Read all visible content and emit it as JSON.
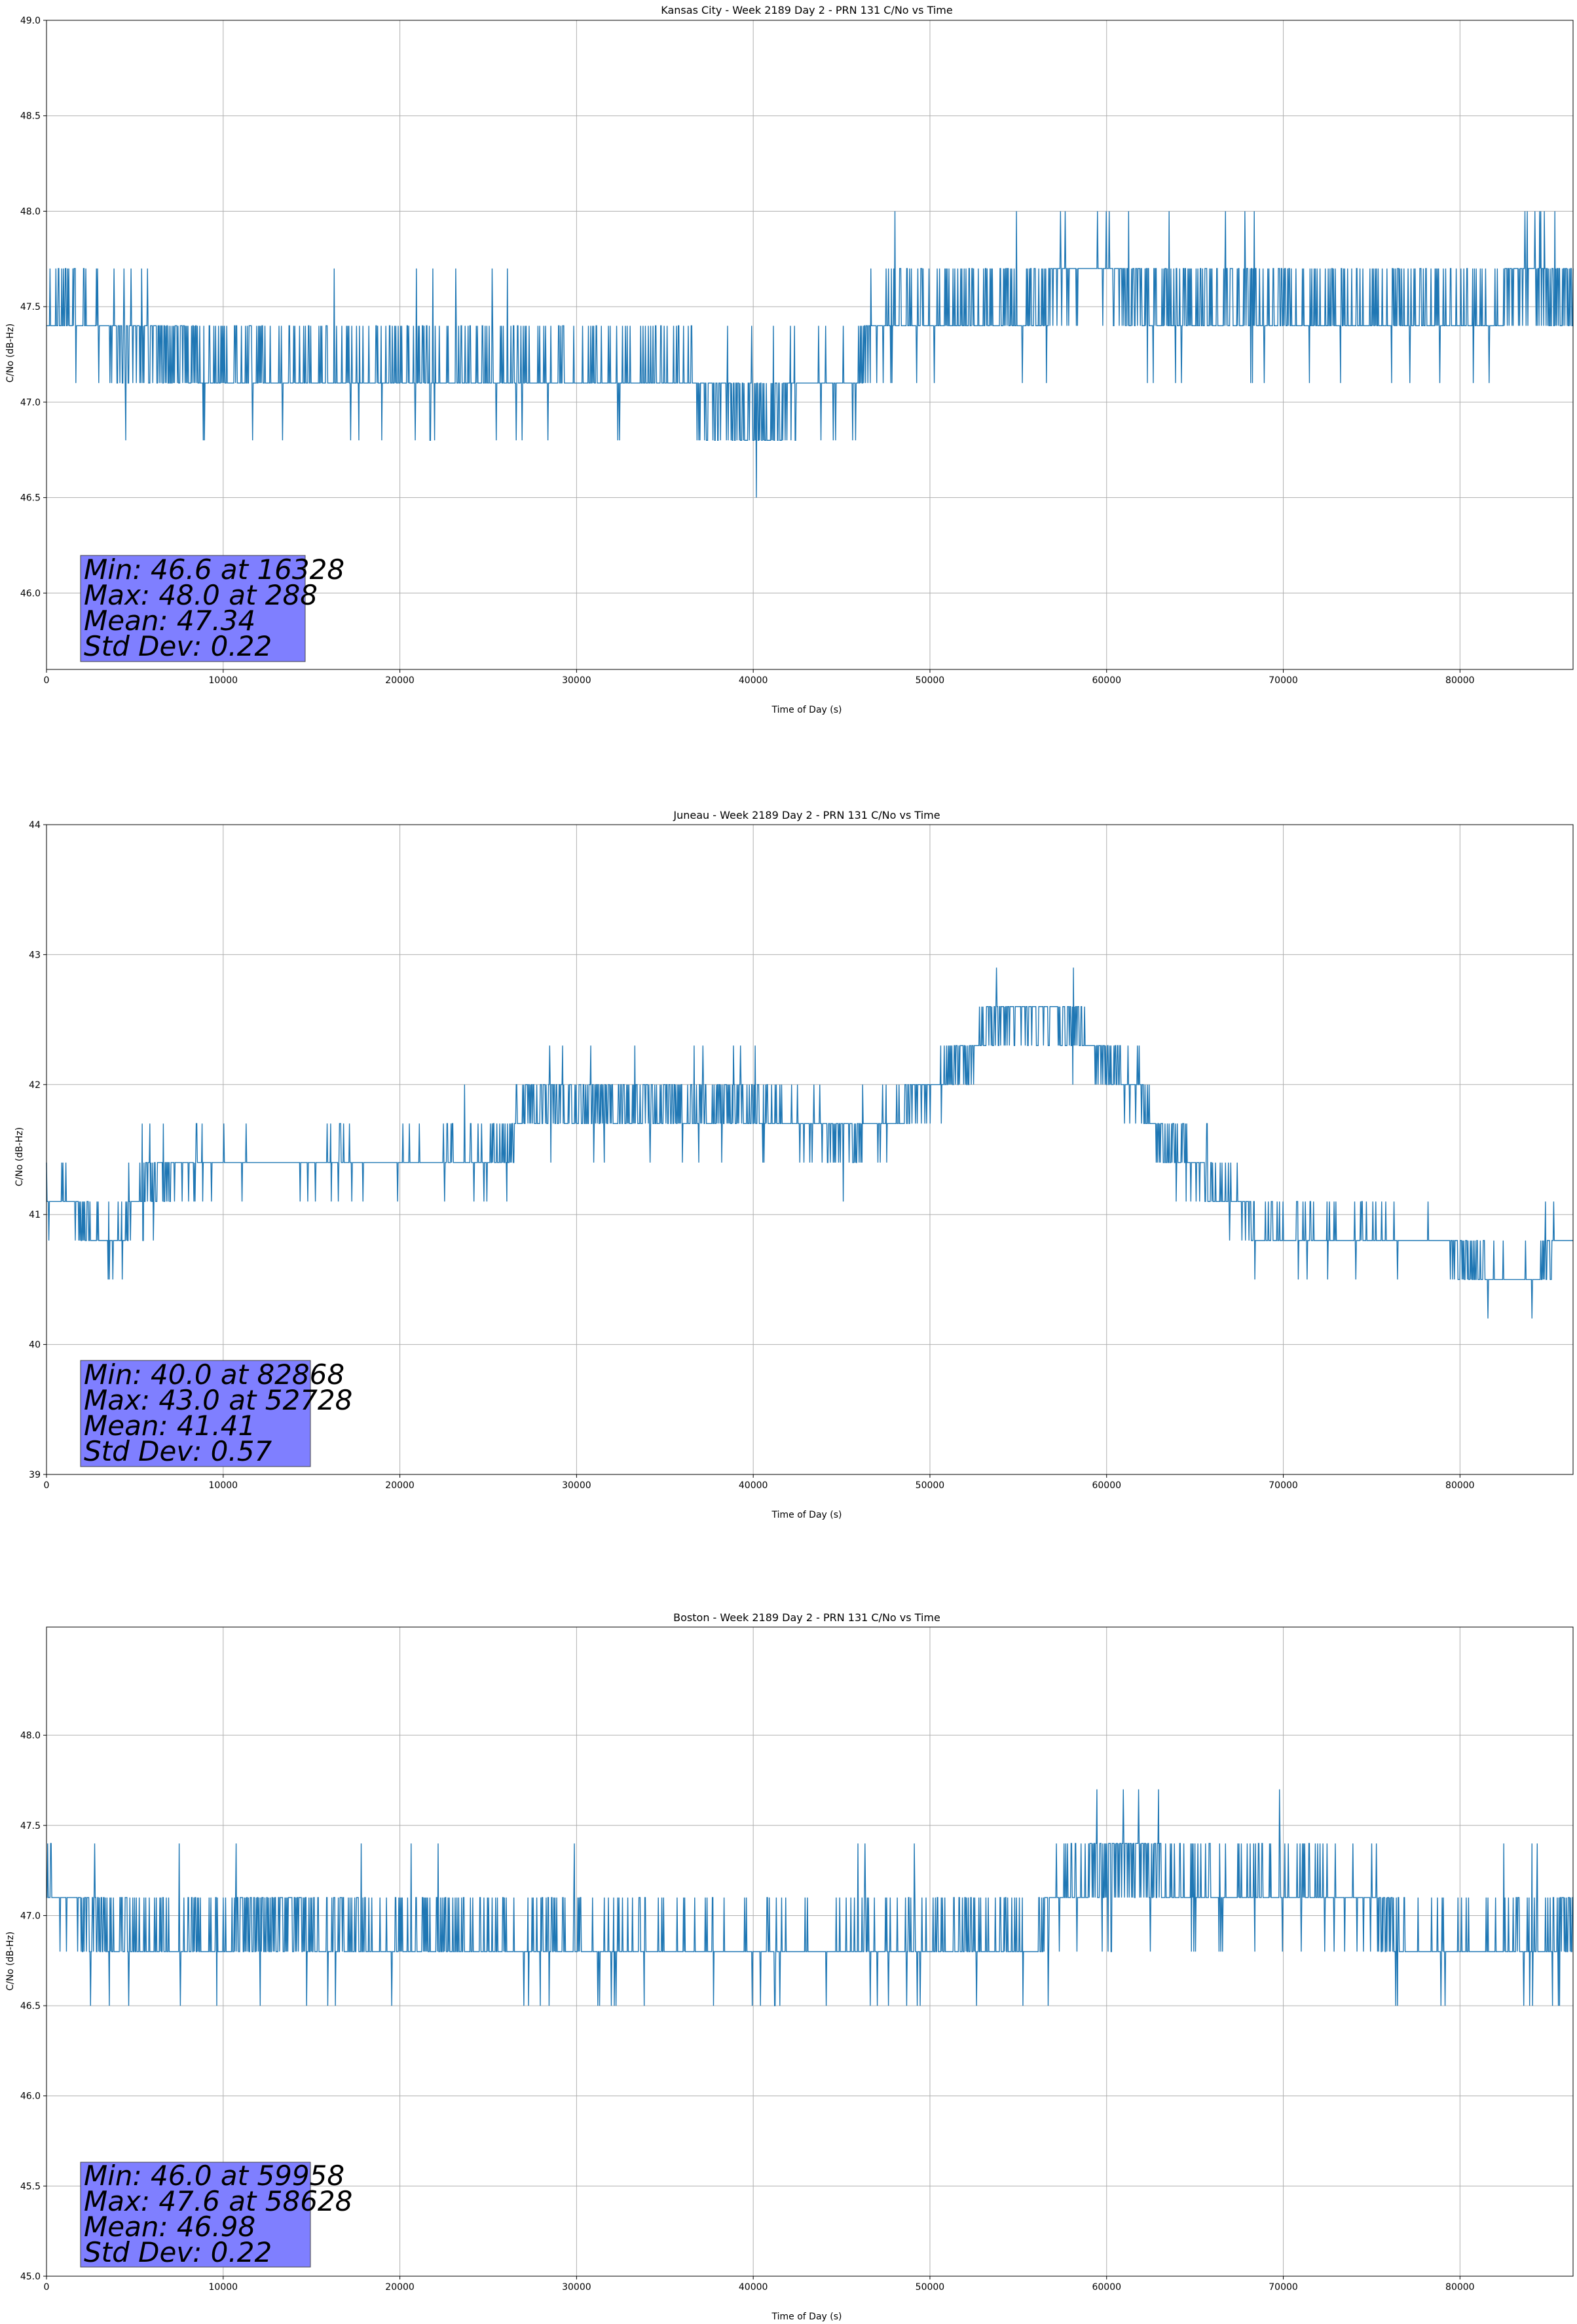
{
  "chart_data": [
    {
      "type": "line",
      "title": "Kansas City - Week 2189 Day 2 - PRN 131 C/No vs Time",
      "xlabel": "Time of Day (s)",
      "ylabel": "C/No (dB-Hz)",
      "xlim": [
        0,
        86400
      ],
      "ylim": [
        45.6,
        49.0
      ],
      "xticks": [
        0,
        10000,
        20000,
        30000,
        40000,
        50000,
        60000,
        70000,
        80000
      ],
      "yticks": [
        46.0,
        46.5,
        47.0,
        47.5,
        48.0,
        48.5,
        49.0
      ],
      "ytick_decimals": 1,
      "grid": true,
      "series_color": "#1f77b4",
      "step": 0.3,
      "trend": [
        [
          0,
          47.45
        ],
        [
          2000,
          47.45
        ],
        [
          5000,
          47.3
        ],
        [
          10000,
          47.15
        ],
        [
          20000,
          47.15
        ],
        [
          30000,
          47.15
        ],
        [
          36000,
          47.15
        ],
        [
          38000,
          47.0
        ],
        [
          41000,
          46.9
        ],
        [
          43000,
          47.1
        ],
        [
          46000,
          47.15
        ],
        [
          47500,
          47.45
        ],
        [
          56000,
          47.5
        ],
        [
          57000,
          47.65
        ],
        [
          60000,
          47.7
        ],
        [
          62000,
          47.5
        ],
        [
          82000,
          47.45
        ],
        [
          83500,
          47.65
        ],
        [
          86400,
          47.5
        ]
      ],
      "stats": {
        "min": "Min: 46.6 at 16328",
        "max": "Max: 48.0 at 288",
        "mean": "Mean: 47.34",
        "std": "Std Dev: 0.22"
      }
    },
    {
      "type": "line",
      "title": "Juneau - Week 2189 Day 2 - PRN 131 C/No vs Time",
      "xlabel": "Time of Day (s)",
      "ylabel": "C/No (dB-Hz)",
      "xlim": [
        0,
        86400
      ],
      "ylim": [
        39.0,
        44.0
      ],
      "xticks": [
        0,
        10000,
        20000,
        30000,
        40000,
        50000,
        60000,
        70000,
        80000
      ],
      "yticks": [
        39,
        40,
        41,
        42,
        43,
        44
      ],
      "ytick_decimals": 0,
      "grid": true,
      "series_color": "#1f77b4",
      "step": 0.3,
      "trend": [
        [
          0,
          41.15
        ],
        [
          1500,
          41.1
        ],
        [
          2500,
          40.85
        ],
        [
          4000,
          40.8
        ],
        [
          5000,
          41.15
        ],
        [
          6000,
          41.3
        ],
        [
          10000,
          41.4
        ],
        [
          20000,
          41.4
        ],
        [
          26000,
          41.45
        ],
        [
          27000,
          41.8
        ],
        [
          30000,
          41.85
        ],
        [
          35000,
          41.85
        ],
        [
          40000,
          41.8
        ],
        [
          45000,
          41.6
        ],
        [
          48000,
          41.7
        ],
        [
          50000,
          42.0
        ],
        [
          52000,
          42.2
        ],
        [
          54000,
          42.5
        ],
        [
          57000,
          42.55
        ],
        [
          59000,
          42.3
        ],
        [
          61000,
          42.0
        ],
        [
          62000,
          41.95
        ],
        [
          63000,
          41.6
        ],
        [
          64500,
          41.45
        ],
        [
          66000,
          41.2
        ],
        [
          67500,
          41.15
        ],
        [
          68500,
          40.85
        ],
        [
          75000,
          40.8
        ],
        [
          79000,
          40.8
        ],
        [
          80000,
          40.65
        ],
        [
          82000,
          40.5
        ],
        [
          84500,
          40.5
        ],
        [
          85500,
          40.8
        ],
        [
          86400,
          40.8
        ]
      ],
      "stats": {
        "min": "Min: 40.0 at 82868",
        "max": "Max: 43.0 at 52728",
        "mean": "Mean: 41.41",
        "std": "Std Dev: 0.57"
      }
    },
    {
      "type": "line",
      "title": "Boston - Week 2189 Day 2 - PRN 131 C/No vs Time",
      "xlabel": "Time of Day (s)",
      "ylabel": "C/No (dB-Hz)",
      "xlim": [
        0,
        86400
      ],
      "ylim": [
        45.0,
        48.6
      ],
      "xticks": [
        0,
        10000,
        20000,
        30000,
        40000,
        50000,
        60000,
        70000,
        80000
      ],
      "yticks": [
        45.0,
        45.5,
        46.0,
        46.5,
        47.0,
        47.5,
        48.0
      ],
      "ytick_decimals": 1,
      "grid": true,
      "series_color": "#1f77b4",
      "step": 0.3,
      "trend": [
        [
          0,
          47.15
        ],
        [
          2000,
          47.0
        ],
        [
          5000,
          46.85
        ],
        [
          10000,
          46.85
        ],
        [
          12500,
          47.0
        ],
        [
          15000,
          46.9
        ],
        [
          20000,
          46.85
        ],
        [
          22000,
          46.95
        ],
        [
          24000,
          46.85
        ],
        [
          30000,
          46.85
        ],
        [
          40000,
          46.8
        ],
        [
          50000,
          46.85
        ],
        [
          56000,
          46.85
        ],
        [
          57000,
          47.1
        ],
        [
          59000,
          47.2
        ],
        [
          60000,
          47.3
        ],
        [
          62000,
          47.3
        ],
        [
          64000,
          47.15
        ],
        [
          70000,
          47.15
        ],
        [
          75000,
          47.1
        ],
        [
          76500,
          46.85
        ],
        [
          80000,
          46.8
        ],
        [
          85500,
          46.85
        ],
        [
          86400,
          47.0
        ]
      ],
      "stats": {
        "min": "Min: 46.0 at 59958",
        "max": "Max: 47.6 at 58628",
        "mean": "Mean: 46.98",
        "std": "Std Dev: 0.22"
      }
    }
  ]
}
